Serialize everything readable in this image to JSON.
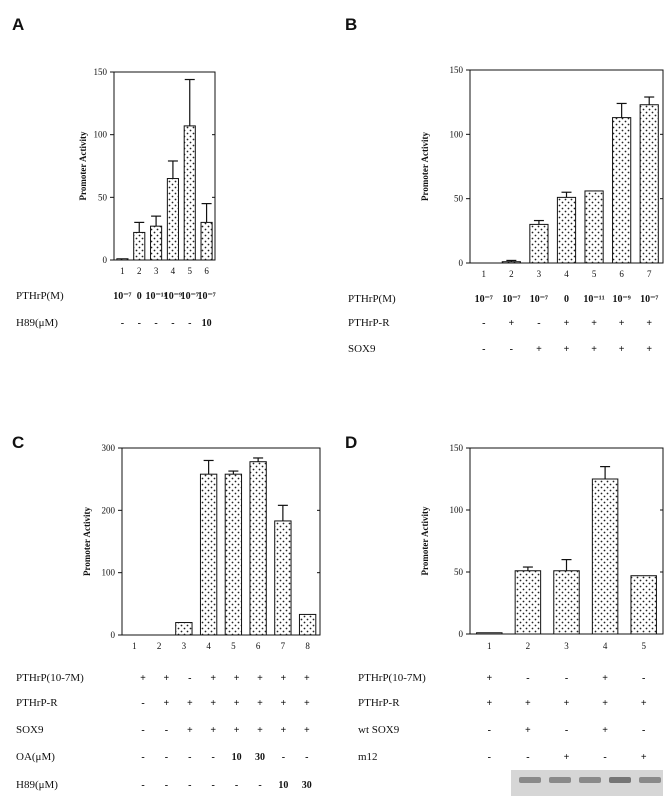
{
  "colors": {
    "ink": "#111111",
    "bar_fill": "#ffffff",
    "dot": "#222222",
    "gel_bg": "#d6d6d6",
    "gel_band": "#6a6a6a"
  },
  "chart_data": [
    {
      "panel": "A",
      "type": "bar",
      "ylabel": "Promoter Activity",
      "ylim": [
        0,
        150
      ],
      "yticks": [
        "0",
        "50",
        "100",
        "150"
      ],
      "categories": [
        "1",
        "2",
        "3",
        "4",
        "5",
        "6"
      ],
      "values": [
        1,
        22,
        27,
        65,
        107,
        30
      ],
      "errors": [
        0,
        8,
        8,
        14,
        37,
        15
      ],
      "rows": [
        {
          "label": "PTHrP(M)",
          "cells": [
            "10⁻⁷",
            "0",
            "10⁻¹¹",
            "10⁻⁹",
            "10⁻⁷",
            "10⁻⁷"
          ]
        },
        {
          "label": "H89(μM)",
          "cells": [
            "-",
            "-",
            "-",
            "-",
            "-",
            "10"
          ]
        }
      ]
    },
    {
      "panel": "B",
      "type": "bar",
      "ylabel": "Promoter Activity",
      "ylim": [
        0,
        150
      ],
      "yticks": [
        "0",
        "50",
        "100",
        "150"
      ],
      "categories": [
        "1",
        "2",
        "3",
        "4",
        "5",
        "6",
        "7"
      ],
      "values": [
        0,
        1,
        30,
        51,
        56,
        113,
        123
      ],
      "errors": [
        0,
        1,
        3,
        4,
        0,
        11,
        6
      ],
      "rows": [
        {
          "label": "PTHrP(M)",
          "cells": [
            "10⁻⁷",
            "10⁻⁷",
            "10⁻⁷",
            "0",
            "10⁻¹¹",
            "10⁻⁹",
            "10⁻⁷"
          ]
        },
        {
          "label": "PTHrP-R",
          "cells": [
            "-",
            "+",
            "-",
            "+",
            "+",
            "+",
            "+"
          ]
        },
        {
          "label": "SOX9",
          "cells": [
            "-",
            "-",
            "+",
            "+",
            "+",
            "+",
            "+"
          ]
        }
      ]
    },
    {
      "panel": "C",
      "type": "bar",
      "ylabel": "Promoter Activity",
      "ylim": [
        0,
        300
      ],
      "yticks": [
        "0",
        "100",
        "200",
        "300"
      ],
      "categories": [
        "1",
        "2",
        "3",
        "4",
        "5",
        "6",
        "7",
        "8"
      ],
      "values": [
        0,
        0,
        20,
        258,
        258,
        278,
        183,
        33
      ],
      "errors": [
        0,
        0,
        0,
        22,
        5,
        6,
        25,
        0
      ],
      "rows": [
        {
          "label": "PTHrP(10-7M)",
          "cells": [
            "+",
            "+",
            "-",
            "+",
            "+",
            "+",
            "+",
            "+"
          ]
        },
        {
          "label": "PTHrP-R",
          "cells": [
            "-",
            "+",
            "+",
            "+",
            "+",
            "+",
            "+",
            "+"
          ]
        },
        {
          "label": "SOX9",
          "cells": [
            "-",
            "-",
            "+",
            "+",
            "+",
            "+",
            "+",
            "+"
          ]
        },
        {
          "label": "OA(μM)",
          "cells": [
            "-",
            "-",
            "-",
            "-",
            "10",
            "30",
            "-",
            "-"
          ]
        },
        {
          "label": "H89(μM)",
          "cells": [
            "-",
            "-",
            "-",
            "-",
            "-",
            "-",
            "10",
            "30"
          ]
        }
      ]
    },
    {
      "panel": "D",
      "type": "bar",
      "ylabel": "Promoter Activity",
      "ylim": [
        0,
        150
      ],
      "yticks": [
        "0",
        "50",
        "100",
        "150"
      ],
      "categories": [
        "1",
        "2",
        "3",
        "4",
        "5"
      ],
      "values": [
        1,
        51,
        51,
        125,
        47
      ],
      "errors": [
        0,
        3,
        9,
        10,
        0
      ],
      "rows": [
        {
          "label": "PTHrP(10-7M)",
          "cells": [
            "+",
            "-",
            "-",
            "+",
            "-"
          ]
        },
        {
          "label": "PTHrP-R",
          "cells": [
            "+",
            "+",
            "+",
            "+",
            "+"
          ]
        },
        {
          "label": "wt SOX9",
          "cells": [
            "-",
            "+",
            "-",
            "+",
            "-"
          ]
        },
        {
          "label": "m12",
          "cells": [
            "-",
            "-",
            "+",
            "-",
            "+"
          ]
        }
      ],
      "gel": true
    }
  ]
}
